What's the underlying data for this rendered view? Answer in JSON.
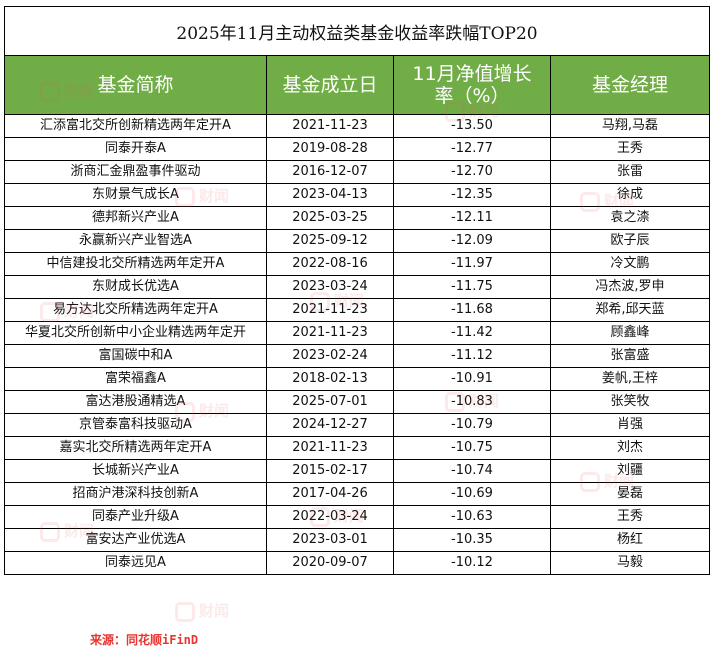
{
  "title": "2025年11月主动权益类基金收益率跌幅TOP20",
  "headers": {
    "name": "基金简称",
    "date": "基金成立日",
    "ret_line1": "11月净值增长",
    "ret_line2": "率（%）",
    "manager": "基金经理"
  },
  "rows": [
    {
      "name": "汇添富北交所创新精选两年定开A",
      "date": "2021-11-23",
      "ret": "-13.50",
      "manager": "马翔,马磊"
    },
    {
      "name": "同泰开泰A",
      "date": "2019-08-28",
      "ret": "-12.77",
      "manager": "王秀"
    },
    {
      "name": "浙商汇金鼎盈事件驱动",
      "date": "2016-12-07",
      "ret": "-12.70",
      "manager": "张雷"
    },
    {
      "name": "东财景气成长A",
      "date": "2023-04-13",
      "ret": "-12.35",
      "manager": "徐成"
    },
    {
      "name": "德邦新兴产业A",
      "date": "2025-03-25",
      "ret": "-12.11",
      "manager": "袁之渿"
    },
    {
      "name": "永赢新兴产业智选A",
      "date": "2025-09-12",
      "ret": "-12.09",
      "manager": "欧子辰"
    },
    {
      "name": "中信建投北交所精选两年定开A",
      "date": "2022-08-16",
      "ret": "-11.97",
      "manager": "冷文鹏"
    },
    {
      "name": "东财成长优选A",
      "date": "2023-03-24",
      "ret": "-11.75",
      "manager": "冯杰波,罗申"
    },
    {
      "name": "易方达北交所精选两年定开A",
      "date": "2021-11-23",
      "ret": "-11.68",
      "manager": "郑希,邱天蓝"
    },
    {
      "name": "华夏北交所创新中小企业精选两年定开",
      "date": "2021-11-23",
      "ret": "-11.42",
      "manager": "顾鑫峰"
    },
    {
      "name": "富国碳中和A",
      "date": "2023-02-24",
      "ret": "-11.12",
      "manager": "张富盛"
    },
    {
      "name": "富荣福鑫A",
      "date": "2018-02-13",
      "ret": "-10.91",
      "manager": "姜帆,王梓"
    },
    {
      "name": "富达港股通精选A",
      "date": "2025-07-01",
      "ret": "-10.83",
      "manager": "张笑牧"
    },
    {
      "name": "京管泰富科技驱动A",
      "date": "2024-12-27",
      "ret": "-10.79",
      "manager": "肖强"
    },
    {
      "name": "嘉实北交所精选两年定开A",
      "date": "2021-11-23",
      "ret": "-10.75",
      "manager": "刘杰"
    },
    {
      "name": "长城新兴产业A",
      "date": "2015-02-17",
      "ret": "-10.74",
      "manager": "刘疆"
    },
    {
      "name": "招商沪港深科技创新A",
      "date": "2017-04-26",
      "ret": "-10.69",
      "manager": "晏磊"
    },
    {
      "name": "同泰产业升级A",
      "date": "2022-03-24",
      "ret": "-10.63",
      "manager": "王秀"
    },
    {
      "name": "富安达产业优选A",
      "date": "2023-03-01",
      "ret": "-10.35",
      "manager": "杨红"
    },
    {
      "name": "同泰远见A",
      "date": "2020-09-07",
      "ret": "-10.12",
      "manager": "马毅"
    }
  ],
  "source": "来源：同花顺iFinD",
  "watermark": "财闻",
  "colors": {
    "header_bg": "#70ad47",
    "header_text": "#ffffff",
    "source_text": "#e8352f"
  }
}
